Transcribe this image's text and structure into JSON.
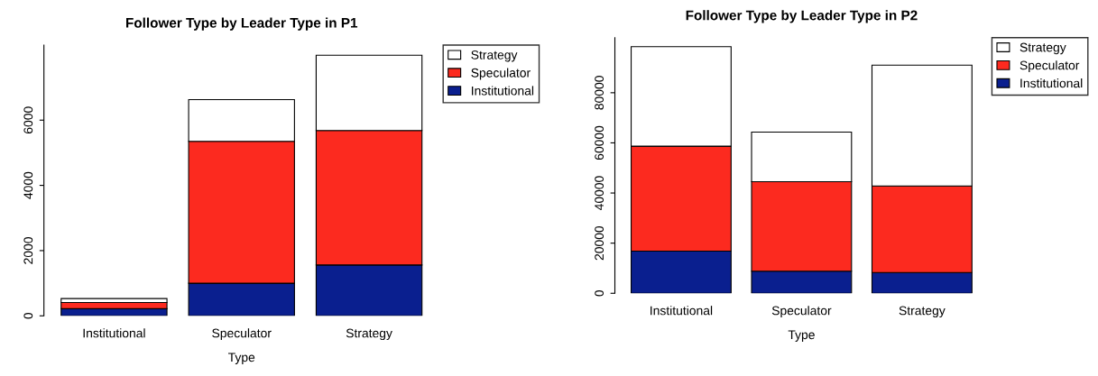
{
  "chart_data": [
    {
      "type": "bar",
      "title": "Follower Type by Leader Type in P1",
      "xlabel": "Type",
      "categories": [
        "Institutional",
        "Speculator",
        "Strategy"
      ],
      "stacked": true,
      "ylim": [
        0,
        8300
      ],
      "yticks": [
        0,
        2000,
        4000,
        6000
      ],
      "legend": "top right",
      "grid": false,
      "series": [
        {
          "name": "Institutional",
          "color": "#0a1f8f",
          "values": [
            220,
            1000,
            1560
          ]
        },
        {
          "name": "Speculator",
          "color": "#fc2a1f",
          "values": [
            190,
            4350,
            4120
          ]
        },
        {
          "name": "Strategy",
          "color": "#ffffff",
          "values": [
            120,
            1280,
            2310
          ]
        }
      ]
    },
    {
      "type": "bar",
      "title": "Follower Type by Leader Type in P2",
      "xlabel": "Type",
      "categories": [
        "Institutional",
        "Speculator",
        "Strategy"
      ],
      "stacked": true,
      "ylim": [
        0,
        102000
      ],
      "yticks": [
        0,
        20000,
        40000,
        60000,
        80000
      ],
      "legend": "top right",
      "grid": false,
      "series": [
        {
          "name": "Institutional",
          "color": "#0a1f8f",
          "values": [
            16800,
            8800,
            8300
          ]
        },
        {
          "name": "Speculator",
          "color": "#fc2a1f",
          "values": [
            41900,
            35700,
            34500
          ]
        },
        {
          "name": "Strategy",
          "color": "#ffffff",
          "values": [
            39700,
            19800,
            48200
          ]
        }
      ]
    }
  ]
}
